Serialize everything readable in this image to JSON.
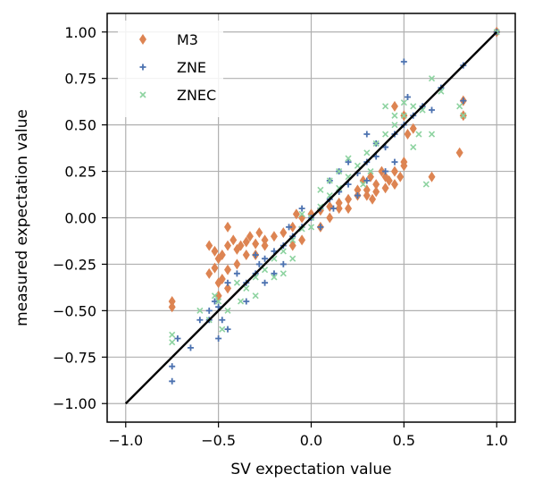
{
  "chart_data": {
    "type": "scatter",
    "xlabel": "SV expectation value",
    "ylabel": "measured expectation value",
    "xlim": [
      -1.1,
      1.1
    ],
    "ylim": [
      -1.1,
      1.1
    ],
    "xticks": [
      "−1.0",
      "−0.5",
      "0.0",
      "0.5",
      "1.0"
    ],
    "xtick_values": [
      -1.0,
      -0.5,
      0.0,
      0.5,
      1.0
    ],
    "yticks": [
      "1.00",
      "0.75",
      "0.50",
      "0.25",
      "0.00",
      "−0.25",
      "−0.50",
      "−0.75",
      "−1.00"
    ],
    "ytick_values": [
      1.0,
      0.75,
      0.5,
      0.25,
      0.0,
      -0.25,
      -0.5,
      -0.75,
      -1.0
    ],
    "grid": true,
    "legend_position": "top-left",
    "reference_line": {
      "x": [
        -1.0,
        1.0
      ],
      "y": [
        -1.0,
        1.0
      ],
      "color": "#000000"
    },
    "series": [
      {
        "name": "M3",
        "marker": "diamond",
        "color": "#dd8452",
        "points": [
          [
            -0.75,
            -0.45
          ],
          [
            -0.75,
            -0.48
          ],
          [
            -0.55,
            -0.15
          ],
          [
            -0.52,
            -0.18
          ],
          [
            -0.5,
            -0.22
          ],
          [
            -0.48,
            -0.2
          ],
          [
            -0.45,
            -0.15
          ],
          [
            -0.42,
            -0.12
          ],
          [
            -0.4,
            -0.17
          ],
          [
            -0.38,
            -0.15
          ],
          [
            -0.35,
            -0.13
          ],
          [
            -0.33,
            -0.1
          ],
          [
            -0.3,
            -0.14
          ],
          [
            -0.28,
            -0.08
          ],
          [
            -0.25,
            -0.12
          ],
          [
            -0.55,
            -0.3
          ],
          [
            -0.5,
            -0.35
          ],
          [
            -0.45,
            -0.28
          ],
          [
            -0.52,
            -0.27
          ],
          [
            -0.48,
            -0.33
          ],
          [
            -0.3,
            -0.2
          ],
          [
            -0.25,
            -0.15
          ],
          [
            -0.2,
            -0.1
          ],
          [
            -0.15,
            -0.08
          ],
          [
            -0.1,
            -0.05
          ],
          [
            -0.08,
            0.02
          ],
          [
            -0.05,
            0.0
          ],
          [
            0.0,
            0.02
          ],
          [
            0.05,
            0.04
          ],
          [
            0.1,
            0.06
          ],
          [
            0.15,
            0.08
          ],
          [
            0.2,
            0.1
          ],
          [
            0.25,
            0.12
          ],
          [
            0.3,
            0.15
          ],
          [
            0.35,
            0.18
          ],
          [
            0.4,
            0.22
          ],
          [
            0.45,
            0.25
          ],
          [
            0.5,
            0.28
          ],
          [
            0.25,
            0.15
          ],
          [
            0.3,
            0.12
          ],
          [
            0.35,
            0.14
          ],
          [
            0.4,
            0.16
          ],
          [
            0.42,
            0.2
          ],
          [
            0.45,
            0.18
          ],
          [
            0.48,
            0.22
          ],
          [
            0.5,
            0.3
          ],
          [
            0.52,
            0.45
          ],
          [
            0.5,
            0.55
          ],
          [
            0.45,
            0.6
          ],
          [
            0.55,
            0.48
          ],
          [
            0.65,
            0.22
          ],
          [
            0.8,
            0.35
          ],
          [
            0.82,
            0.55
          ],
          [
            0.82,
            0.63
          ],
          [
            1.0,
            1.0
          ],
          [
            0.28,
            0.2
          ],
          [
            0.32,
            0.22
          ],
          [
            0.38,
            0.25
          ],
          [
            -0.35,
            -0.2
          ],
          [
            -0.4,
            -0.25
          ],
          [
            -0.45,
            -0.38
          ],
          [
            -0.5,
            -0.42
          ],
          [
            -0.45,
            -0.05
          ],
          [
            0.1,
            0.0
          ],
          [
            0.15,
            0.05
          ],
          [
            0.2,
            0.05
          ],
          [
            -0.1,
            -0.15
          ],
          [
            -0.05,
            -0.12
          ],
          [
            0.05,
            -0.05
          ],
          [
            0.33,
            0.1
          ]
        ]
      },
      {
        "name": "ZNE",
        "marker": "plus",
        "color": "#4c72b0",
        "points": [
          [
            -0.75,
            -0.8
          ],
          [
            -0.75,
            -0.88
          ],
          [
            -0.72,
            -0.65
          ],
          [
            -0.55,
            -0.5
          ],
          [
            -0.5,
            -0.48
          ],
          [
            -0.52,
            -0.45
          ],
          [
            -0.48,
            -0.55
          ],
          [
            -0.45,
            -0.6
          ],
          [
            -0.5,
            -0.65
          ],
          [
            -0.55,
            -0.55
          ],
          [
            -0.35,
            -0.35
          ],
          [
            -0.3,
            -0.3
          ],
          [
            -0.28,
            -0.25
          ],
          [
            -0.25,
            -0.22
          ],
          [
            -0.2,
            -0.18
          ],
          [
            -0.15,
            -0.15
          ],
          [
            -0.1,
            -0.1
          ],
          [
            -0.05,
            -0.05
          ],
          [
            0.0,
            0.0
          ],
          [
            0.05,
            0.05
          ],
          [
            0.1,
            0.1
          ],
          [
            0.15,
            0.14
          ],
          [
            0.2,
            0.18
          ],
          [
            0.25,
            0.24
          ],
          [
            0.3,
            0.3
          ],
          [
            0.35,
            0.33
          ],
          [
            0.4,
            0.38
          ],
          [
            0.45,
            0.45
          ],
          [
            0.5,
            0.5
          ],
          [
            0.55,
            0.55
          ],
          [
            0.52,
            0.65
          ],
          [
            0.6,
            0.6
          ],
          [
            0.65,
            0.58
          ],
          [
            0.7,
            0.7
          ],
          [
            0.5,
            0.84
          ],
          [
            0.82,
            0.82
          ],
          [
            0.82,
            0.63
          ],
          [
            1.0,
            1.0
          ],
          [
            0.25,
            0.12
          ],
          [
            0.3,
            0.2
          ],
          [
            -0.2,
            -0.3
          ],
          [
            -0.3,
            -0.2
          ],
          [
            -0.15,
            -0.25
          ],
          [
            -0.25,
            -0.35
          ],
          [
            -0.4,
            -0.3
          ],
          [
            -0.45,
            -0.35
          ],
          [
            -0.35,
            -0.45
          ],
          [
            0.1,
            0.2
          ],
          [
            0.2,
            0.3
          ],
          [
            0.15,
            0.25
          ],
          [
            -0.05,
            0.05
          ],
          [
            0.05,
            -0.05
          ],
          [
            0.12,
            0.05
          ],
          [
            -0.12,
            -0.05
          ],
          [
            0.4,
            0.25
          ],
          [
            0.35,
            0.4
          ],
          [
            0.3,
            0.45
          ],
          [
            0.45,
            0.3
          ],
          [
            -0.6,
            -0.55
          ],
          [
            -0.65,
            -0.7
          ]
        ]
      },
      {
        "name": "ZNEC",
        "marker": "x",
        "color": "#8dd3a0",
        "points": [
          [
            -0.75,
            -0.63
          ],
          [
            -0.75,
            -0.67
          ],
          [
            -0.6,
            -0.5
          ],
          [
            -0.55,
            -0.55
          ],
          [
            -0.5,
            -0.45
          ],
          [
            -0.48,
            -0.6
          ],
          [
            -0.45,
            -0.5
          ],
          [
            -0.52,
            -0.42
          ],
          [
            -0.35,
            -0.38
          ],
          [
            -0.3,
            -0.32
          ],
          [
            -0.25,
            -0.28
          ],
          [
            -0.2,
            -0.22
          ],
          [
            -0.15,
            -0.18
          ],
          [
            -0.1,
            -0.12
          ],
          [
            -0.05,
            -0.06
          ],
          [
            0.0,
            0.0
          ],
          [
            0.05,
            0.06
          ],
          [
            0.1,
            0.12
          ],
          [
            0.15,
            0.16
          ],
          [
            0.2,
            0.22
          ],
          [
            0.25,
            0.28
          ],
          [
            0.3,
            0.35
          ],
          [
            0.35,
            0.4
          ],
          [
            0.4,
            0.45
          ],
          [
            0.45,
            0.5
          ],
          [
            0.5,
            0.55
          ],
          [
            0.55,
            0.6
          ],
          [
            0.6,
            0.58
          ],
          [
            0.65,
            0.75
          ],
          [
            0.7,
            0.68
          ],
          [
            0.65,
            0.45
          ],
          [
            0.8,
            0.6
          ],
          [
            0.82,
            0.55
          ],
          [
            0.62,
            0.18
          ],
          [
            1.0,
            1.0
          ],
          [
            0.4,
            0.6
          ],
          [
            0.5,
            0.62
          ],
          [
            0.45,
            0.55
          ],
          [
            -0.2,
            -0.32
          ],
          [
            -0.3,
            -0.42
          ],
          [
            -0.15,
            -0.3
          ],
          [
            -0.1,
            -0.22
          ],
          [
            0.05,
            0.15
          ],
          [
            0.1,
            0.2
          ],
          [
            0.15,
            0.25
          ],
          [
            0.2,
            0.32
          ],
          [
            -0.05,
            0.02
          ],
          [
            0.0,
            -0.05
          ],
          [
            -0.4,
            -0.35
          ],
          [
            -0.38,
            -0.45
          ],
          [
            0.28,
            0.18
          ],
          [
            0.32,
            0.25
          ],
          [
            0.58,
            0.45
          ],
          [
            0.55,
            0.38
          ]
        ]
      }
    ]
  }
}
